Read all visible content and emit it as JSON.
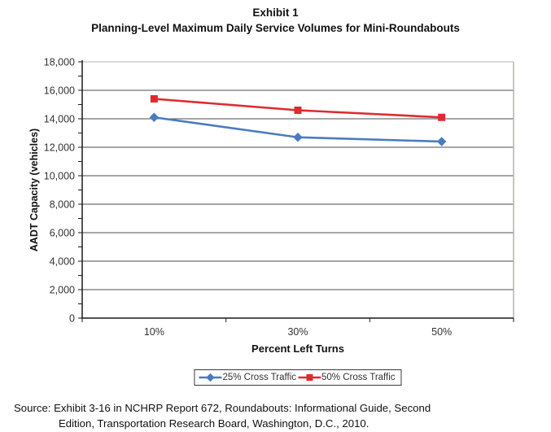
{
  "title": {
    "line1": "Exhibit 1",
    "line2": "Planning-Level Maximum Daily Service Volumes for Mini-Roundabouts"
  },
  "chart_data": {
    "type": "line",
    "categories": [
      "10%",
      "30%",
      "50%"
    ],
    "series": [
      {
        "name": "25% Cross Traffic",
        "marker": "diamond",
        "color": "#4b7bbe",
        "values": [
          14100,
          12700,
          12400
        ]
      },
      {
        "name": "50% Cross Traffic",
        "marker": "square",
        "color": "#e02a30",
        "values": [
          15400,
          14600,
          14100
        ]
      }
    ],
    "xlabel": "Percent Left Turns",
    "ylabel": "AADT Capacity (vehicles)",
    "ylim": [
      0,
      18000
    ],
    "ytick_step": 2000,
    "yminor_step": 1000,
    "y_tick_labels": [
      "0",
      "2,000",
      "4,000",
      "6,000",
      "8,000",
      "10,000",
      "12,000",
      "14,000",
      "16,000",
      "18,000"
    ],
    "grid": "horizontal",
    "legend_position": "bottom"
  },
  "colors": {
    "gridline": "#4d4d4d",
    "plot_border": "#b3b3ab",
    "axis": "#1a1a1a",
    "tick_label": "#333333"
  },
  "source": {
    "line1": "Source: Exhibit 3-16 in NCHRP Report 672, Roundabouts: Informational Guide, Second",
    "line2": "Edition, Transportation Research Board, Washington, D.C., 2010."
  }
}
